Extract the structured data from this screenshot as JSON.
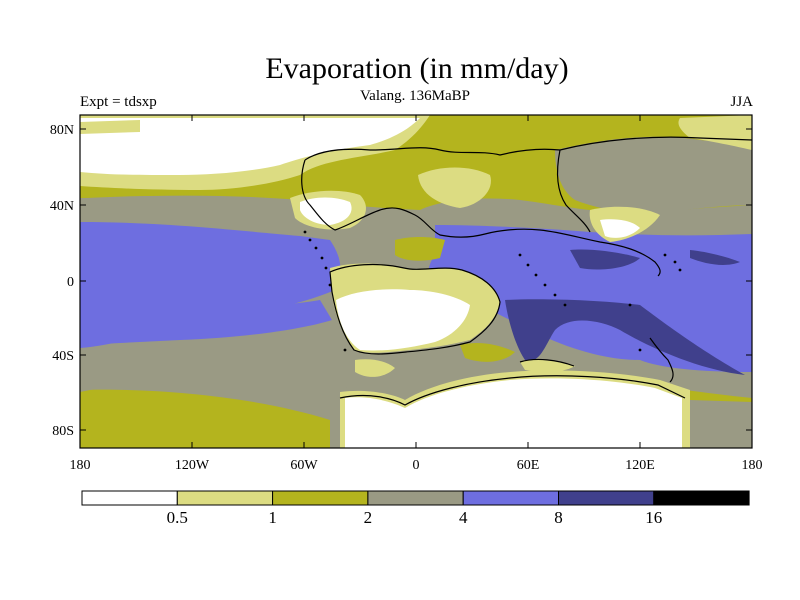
{
  "header": {
    "title": "Evaporation (in mm/day)",
    "subtitle": "Valang. 136MaBP",
    "left_label": "Expt = tdsxp",
    "right_label": "JJA"
  },
  "map": {
    "lat_labels": [
      "80N",
      "40N",
      "0",
      "40S",
      "80S"
    ],
    "lon_labels": [
      "180",
      "120W",
      "60W",
      "0",
      "60E",
      "120E",
      "180"
    ]
  },
  "legend": {
    "colors": [
      "#ffffff",
      "#dcdc82",
      "#b4b41e",
      "#9a9a84",
      "#6e6ee0",
      "#40408c",
      "#000000"
    ],
    "labels": [
      "0.5",
      "1",
      "2",
      "4",
      "8",
      "16"
    ]
  }
}
